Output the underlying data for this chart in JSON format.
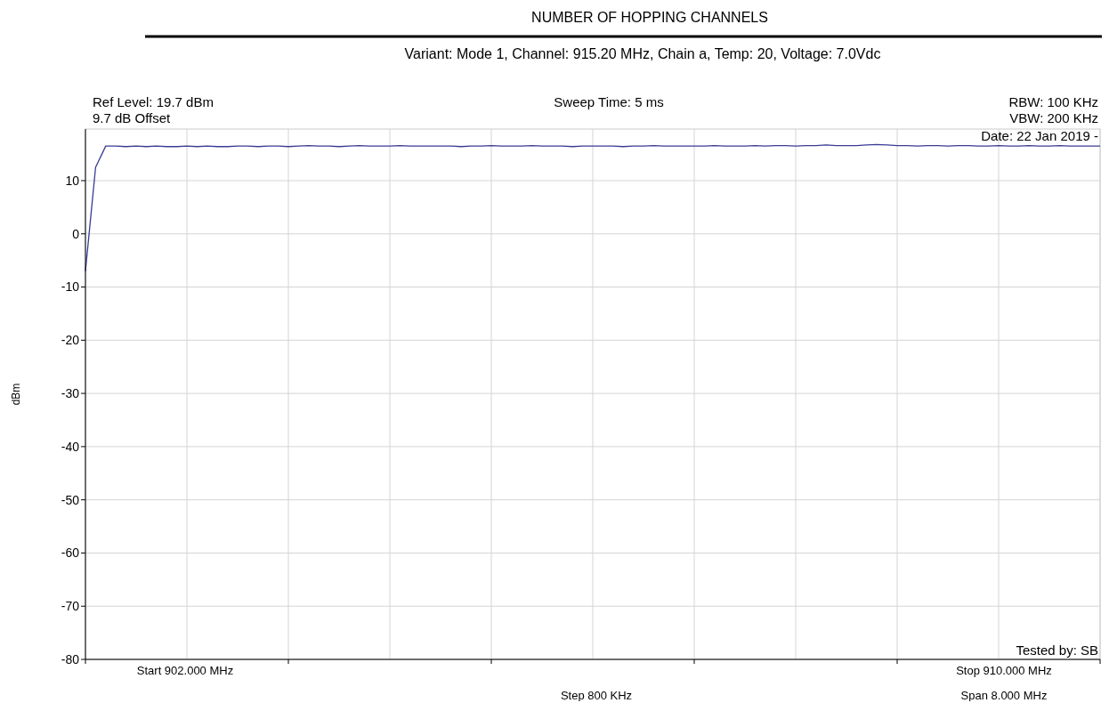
{
  "chart_data": {
    "type": "line",
    "title": "NUMBER OF HOPPING CHANNELS",
    "subtitle": "Variant: Mode 1, Channel: 915.20 MHz, Chain a, Temp: 20, Voltage: 7.0Vdc",
    "ylabel": "dBm",
    "annotations": [
      "Ref Level: 19.7 dBm",
      "9.7 dB Offset",
      "Sweep Time: 5 ms",
      "RBW: 100 KHz",
      "VBW: 200 KHz",
      "Date: 22 Jan 2019 -",
      "Tested by: SB",
      "Start 902.000 MHz",
      "Step 800 KHz",
      "Stop 910.000 MHz",
      "Span 8.000 MHz"
    ],
    "categories": [
      null,
      null,
      null,
      null,
      null,
      null,
      null,
      null,
      null,
      null,
      null,
      null,
      null,
      null,
      null,
      null,
      null,
      null,
      null,
      null,
      null,
      null,
      null,
      null,
      null,
      null,
      null,
      null,
      null,
      null,
      null,
      null,
      null,
      null,
      null,
      null,
      null,
      null,
      null,
      null,
      null,
      null,
      null,
      null,
      null,
      null,
      null,
      null,
      null,
      null,
      null,
      null,
      null,
      null,
      null,
      null,
      null,
      null,
      null,
      null,
      null,
      null,
      null,
      null,
      null,
      null,
      null,
      null,
      null,
      null,
      null,
      null,
      null,
      null,
      null,
      null,
      null,
      null,
      null,
      null,
      null,
      null,
      null,
      null,
      null,
      null,
      null,
      null,
      null,
      null,
      null,
      null,
      null,
      null,
      null,
      null,
      null,
      null,
      null,
      null,
      null
    ],
    "series": [
      {
        "color": "#3a3a96",
        "values": [
          -7,
          12.5,
          16.5,
          16.5,
          16.4,
          16.5,
          16.4,
          16.5,
          16.4,
          16.4,
          16.5,
          16.4,
          16.5,
          16.4,
          16.4,
          16.5,
          16.5,
          16.4,
          16.5,
          16.5,
          16.4,
          16.5,
          16.6,
          16.5,
          16.5,
          16.4,
          16.5,
          16.6,
          16.5,
          16.5,
          16.5,
          16.6,
          16.5,
          16.5,
          16.5,
          16.5,
          16.5,
          16.4,
          16.5,
          16.5,
          16.6,
          16.5,
          16.5,
          16.5,
          16.6,
          16.5,
          16.5,
          16.5,
          16.4,
          16.5,
          16.5,
          16.5,
          16.5,
          16.4,
          16.5,
          16.5,
          16.6,
          16.5,
          16.5,
          16.5,
          16.5,
          16.5,
          16.6,
          16.5,
          16.5,
          16.5,
          16.6,
          16.5,
          16.6,
          16.6,
          16.5,
          16.6,
          16.6,
          16.7,
          16.6,
          16.6,
          16.6,
          16.7,
          16.8,
          16.7,
          16.6,
          16.6,
          16.5,
          16.6,
          16.6,
          16.5,
          16.6,
          16.6,
          16.5,
          16.5,
          16.6,
          16.5,
          16.5,
          16.6,
          16.5,
          16.5,
          16.6,
          16.5,
          16.5,
          16.5,
          16.5
        ]
      }
    ],
    "ylim": [
      -80,
      19.7
    ],
    "yticks": [
      -80,
      -70,
      -60,
      -50,
      -40,
      -30,
      -20,
      -10,
      0,
      10
    ],
    "grid": true
  }
}
